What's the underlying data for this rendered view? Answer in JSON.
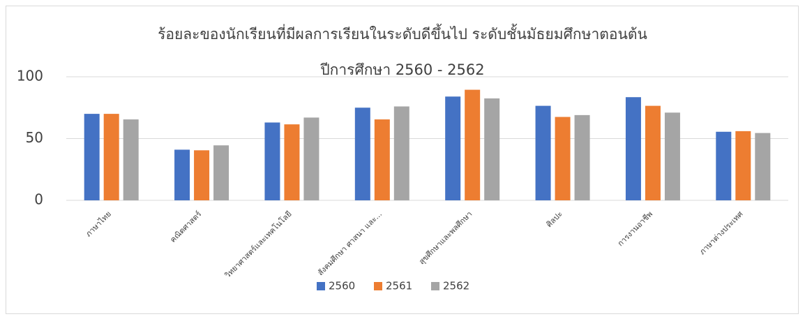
{
  "chart_data": {
    "type": "bar",
    "title": [
      "ร้อยละของนักเรียนที่มีผลการเรียนในระดับดีขึ้นไป ระดับชั้นมัธยมศึกษาตอนต้น",
      "ปีการศึกษา 2560 - 2562"
    ],
    "categories": [
      "ภาษาไทย",
      "คณิตศาสตร์",
      "วิทยาศาสตร์และเทคโนโลยี",
      "สังคมศึกษา ศาสนา และ...",
      "สุขศึกษาและพลศึกษา",
      "ศิลปะ",
      "การงานอาชีพ",
      "ภาษาต่างประเทศ"
    ],
    "series": [
      {
        "name": "2560",
        "color": "#4472c4",
        "values": [
          70,
          41,
          63,
          75,
          84,
          76.5,
          83.5,
          55.5
        ]
      },
      {
        "name": "2561",
        "color": "#ed7d31",
        "values": [
          70,
          40.5,
          61.5,
          65.5,
          89.5,
          67.5,
          76.5,
          56
        ]
      },
      {
        "name": "2562",
        "color": "#a5a5a5",
        "values": [
          65.5,
          44.5,
          67,
          76,
          82.5,
          69,
          71,
          54.5
        ]
      }
    ],
    "ylim": [
      0,
      100
    ],
    "yticks": [
      0,
      50,
      100
    ],
    "grid": true,
    "legend": "bottom"
  }
}
